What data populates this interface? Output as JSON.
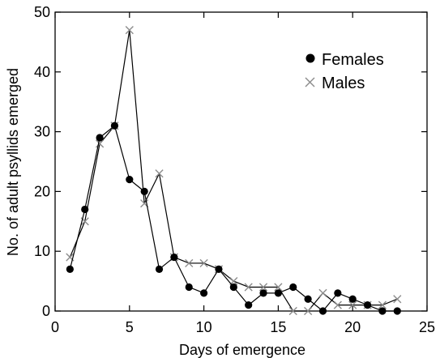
{
  "chart_data": {
    "type": "line",
    "title": "",
    "xlabel": "Days of emergence",
    "ylabel": "No. of adult psyllids emerged",
    "xlim": [
      0,
      25
    ],
    "ylim": [
      0,
      50
    ],
    "xticks": [
      0,
      5,
      10,
      15,
      20,
      25
    ],
    "yticks": [
      0,
      10,
      20,
      30,
      40,
      50
    ],
    "grid": false,
    "legend_position": "top-right",
    "series": [
      {
        "name": "Females",
        "marker": "filled-circle",
        "color": "#000000",
        "x": [
          1,
          2,
          3,
          4,
          5,
          6,
          7,
          8,
          9,
          10,
          11,
          12,
          13,
          14,
          15,
          16,
          17,
          18,
          19,
          20,
          21,
          22,
          23
        ],
        "values": [
          7,
          17,
          29,
          31,
          22,
          20,
          7,
          9,
          4,
          3,
          7,
          4,
          1,
          3,
          3,
          4,
          2,
          0,
          3,
          2,
          1,
          0,
          0
        ]
      },
      {
        "name": "Males",
        "marker": "cross",
        "color": "#8c8c8c",
        "x": [
          1,
          2,
          3,
          4,
          5,
          6,
          7,
          8,
          9,
          10,
          11,
          12,
          13,
          14,
          15,
          16,
          17,
          18,
          19,
          20,
          21,
          22,
          23
        ],
        "values": [
          9,
          15,
          28,
          31,
          47,
          18,
          23,
          9,
          8,
          8,
          7,
          5,
          4,
          4,
          4,
          0,
          0,
          3,
          1,
          1,
          1,
          1,
          2
        ]
      }
    ]
  }
}
